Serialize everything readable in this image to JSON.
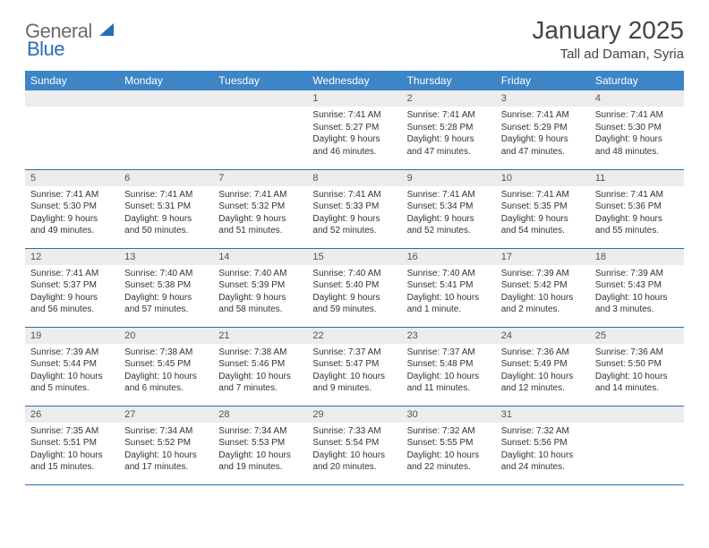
{
  "logo": {
    "general": "General",
    "blue": "Blue"
  },
  "title": "January 2025",
  "location": "Tall ad Daman, Syria",
  "colors": {
    "header_bg": "#3d85c6",
    "header_text": "#ffffff",
    "daynum_bg": "#ececec",
    "rule": "#2a6db8",
    "logo_gray": "#6a6a6a",
    "logo_blue": "#2a6db8",
    "page_bg": "#ffffff"
  },
  "weekdays": [
    "Sunday",
    "Monday",
    "Tuesday",
    "Wednesday",
    "Thursday",
    "Friday",
    "Saturday"
  ],
  "weeks": [
    [
      null,
      null,
      null,
      {
        "n": "1",
        "sr": "Sunrise: 7:41 AM",
        "ss": "Sunset: 5:27 PM",
        "d1": "Daylight: 9 hours",
        "d2": "and 46 minutes."
      },
      {
        "n": "2",
        "sr": "Sunrise: 7:41 AM",
        "ss": "Sunset: 5:28 PM",
        "d1": "Daylight: 9 hours",
        "d2": "and 47 minutes."
      },
      {
        "n": "3",
        "sr": "Sunrise: 7:41 AM",
        "ss": "Sunset: 5:29 PM",
        "d1": "Daylight: 9 hours",
        "d2": "and 47 minutes."
      },
      {
        "n": "4",
        "sr": "Sunrise: 7:41 AM",
        "ss": "Sunset: 5:30 PM",
        "d1": "Daylight: 9 hours",
        "d2": "and 48 minutes."
      }
    ],
    [
      {
        "n": "5",
        "sr": "Sunrise: 7:41 AM",
        "ss": "Sunset: 5:30 PM",
        "d1": "Daylight: 9 hours",
        "d2": "and 49 minutes."
      },
      {
        "n": "6",
        "sr": "Sunrise: 7:41 AM",
        "ss": "Sunset: 5:31 PM",
        "d1": "Daylight: 9 hours",
        "d2": "and 50 minutes."
      },
      {
        "n": "7",
        "sr": "Sunrise: 7:41 AM",
        "ss": "Sunset: 5:32 PM",
        "d1": "Daylight: 9 hours",
        "d2": "and 51 minutes."
      },
      {
        "n": "8",
        "sr": "Sunrise: 7:41 AM",
        "ss": "Sunset: 5:33 PM",
        "d1": "Daylight: 9 hours",
        "d2": "and 52 minutes."
      },
      {
        "n": "9",
        "sr": "Sunrise: 7:41 AM",
        "ss": "Sunset: 5:34 PM",
        "d1": "Daylight: 9 hours",
        "d2": "and 52 minutes."
      },
      {
        "n": "10",
        "sr": "Sunrise: 7:41 AM",
        "ss": "Sunset: 5:35 PM",
        "d1": "Daylight: 9 hours",
        "d2": "and 54 minutes."
      },
      {
        "n": "11",
        "sr": "Sunrise: 7:41 AM",
        "ss": "Sunset: 5:36 PM",
        "d1": "Daylight: 9 hours",
        "d2": "and 55 minutes."
      }
    ],
    [
      {
        "n": "12",
        "sr": "Sunrise: 7:41 AM",
        "ss": "Sunset: 5:37 PM",
        "d1": "Daylight: 9 hours",
        "d2": "and 56 minutes."
      },
      {
        "n": "13",
        "sr": "Sunrise: 7:40 AM",
        "ss": "Sunset: 5:38 PM",
        "d1": "Daylight: 9 hours",
        "d2": "and 57 minutes."
      },
      {
        "n": "14",
        "sr": "Sunrise: 7:40 AM",
        "ss": "Sunset: 5:39 PM",
        "d1": "Daylight: 9 hours",
        "d2": "and 58 minutes."
      },
      {
        "n": "15",
        "sr": "Sunrise: 7:40 AM",
        "ss": "Sunset: 5:40 PM",
        "d1": "Daylight: 9 hours",
        "d2": "and 59 minutes."
      },
      {
        "n": "16",
        "sr": "Sunrise: 7:40 AM",
        "ss": "Sunset: 5:41 PM",
        "d1": "Daylight: 10 hours",
        "d2": "and 1 minute."
      },
      {
        "n": "17",
        "sr": "Sunrise: 7:39 AM",
        "ss": "Sunset: 5:42 PM",
        "d1": "Daylight: 10 hours",
        "d2": "and 2 minutes."
      },
      {
        "n": "18",
        "sr": "Sunrise: 7:39 AM",
        "ss": "Sunset: 5:43 PM",
        "d1": "Daylight: 10 hours",
        "d2": "and 3 minutes."
      }
    ],
    [
      {
        "n": "19",
        "sr": "Sunrise: 7:39 AM",
        "ss": "Sunset: 5:44 PM",
        "d1": "Daylight: 10 hours",
        "d2": "and 5 minutes."
      },
      {
        "n": "20",
        "sr": "Sunrise: 7:38 AM",
        "ss": "Sunset: 5:45 PM",
        "d1": "Daylight: 10 hours",
        "d2": "and 6 minutes."
      },
      {
        "n": "21",
        "sr": "Sunrise: 7:38 AM",
        "ss": "Sunset: 5:46 PM",
        "d1": "Daylight: 10 hours",
        "d2": "and 7 minutes."
      },
      {
        "n": "22",
        "sr": "Sunrise: 7:37 AM",
        "ss": "Sunset: 5:47 PM",
        "d1": "Daylight: 10 hours",
        "d2": "and 9 minutes."
      },
      {
        "n": "23",
        "sr": "Sunrise: 7:37 AM",
        "ss": "Sunset: 5:48 PM",
        "d1": "Daylight: 10 hours",
        "d2": "and 11 minutes."
      },
      {
        "n": "24",
        "sr": "Sunrise: 7:36 AM",
        "ss": "Sunset: 5:49 PM",
        "d1": "Daylight: 10 hours",
        "d2": "and 12 minutes."
      },
      {
        "n": "25",
        "sr": "Sunrise: 7:36 AM",
        "ss": "Sunset: 5:50 PM",
        "d1": "Daylight: 10 hours",
        "d2": "and 14 minutes."
      }
    ],
    [
      {
        "n": "26",
        "sr": "Sunrise: 7:35 AM",
        "ss": "Sunset: 5:51 PM",
        "d1": "Daylight: 10 hours",
        "d2": "and 15 minutes."
      },
      {
        "n": "27",
        "sr": "Sunrise: 7:34 AM",
        "ss": "Sunset: 5:52 PM",
        "d1": "Daylight: 10 hours",
        "d2": "and 17 minutes."
      },
      {
        "n": "28",
        "sr": "Sunrise: 7:34 AM",
        "ss": "Sunset: 5:53 PM",
        "d1": "Daylight: 10 hours",
        "d2": "and 19 minutes."
      },
      {
        "n": "29",
        "sr": "Sunrise: 7:33 AM",
        "ss": "Sunset: 5:54 PM",
        "d1": "Daylight: 10 hours",
        "d2": "and 20 minutes."
      },
      {
        "n": "30",
        "sr": "Sunrise: 7:32 AM",
        "ss": "Sunset: 5:55 PM",
        "d1": "Daylight: 10 hours",
        "d2": "and 22 minutes."
      },
      {
        "n": "31",
        "sr": "Sunrise: 7:32 AM",
        "ss": "Sunset: 5:56 PM",
        "d1": "Daylight: 10 hours",
        "d2": "and 24 minutes."
      },
      null
    ]
  ]
}
